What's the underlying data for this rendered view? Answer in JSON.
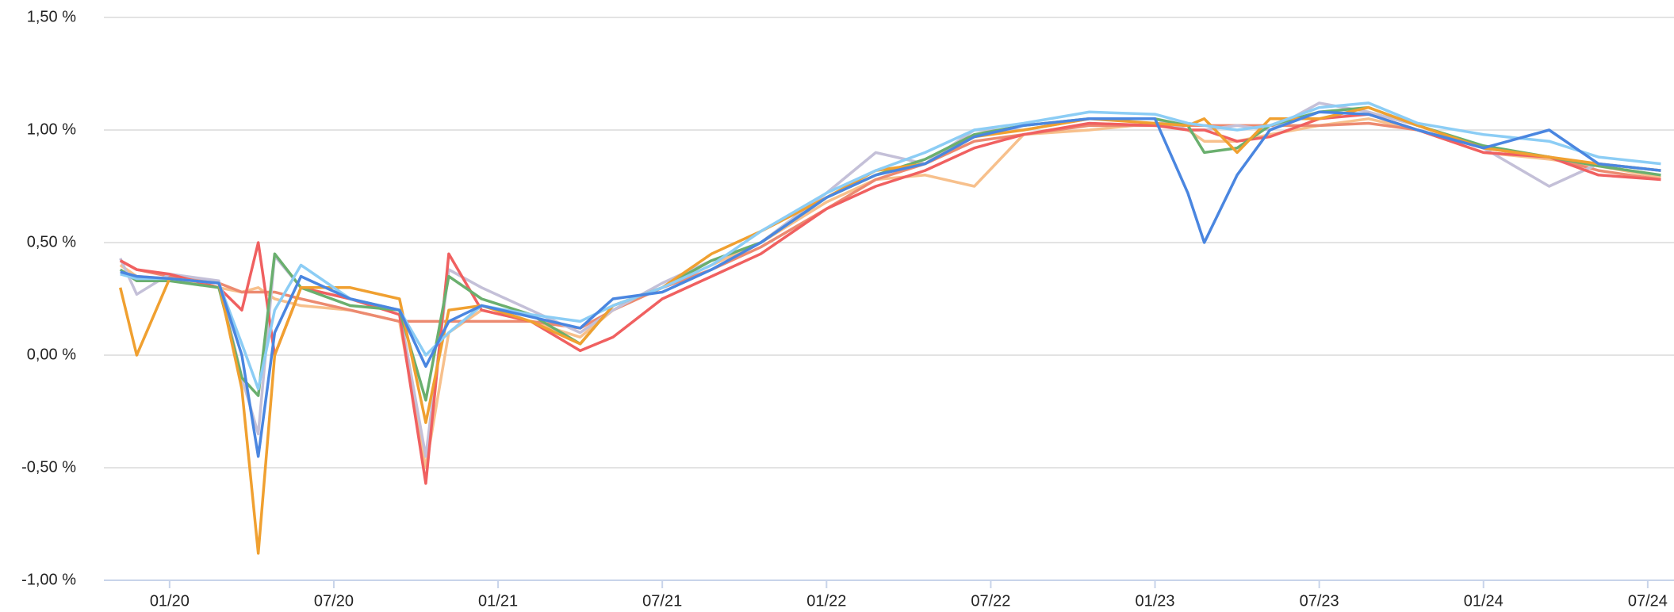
{
  "chart_data": {
    "type": "line",
    "x": [
      2019.85,
      2019.9,
      2020.0,
      2020.15,
      2020.22,
      2020.27,
      2020.32,
      2020.4,
      2020.55,
      2020.7,
      2020.78,
      2020.85,
      2020.95,
      2021.1,
      2021.25,
      2021.35,
      2021.5,
      2021.65,
      2021.8,
      2022.0,
      2022.15,
      2022.3,
      2022.45,
      2022.6,
      2022.8,
      2023.0,
      2023.1,
      2023.15,
      2023.25,
      2023.35,
      2023.5,
      2023.65,
      2023.8,
      2024.0,
      2024.2,
      2024.35,
      2024.54
    ],
    "series": [
      {
        "color": "#f7c08c",
        "values": [
          0.4,
          0.35,
          0.34,
          0.3,
          0.28,
          0.3,
          0.25,
          0.22,
          0.2,
          0.15,
          -0.5,
          0.1,
          0.2,
          0.15,
          0.08,
          0.2,
          0.3,
          0.4,
          0.5,
          0.68,
          0.78,
          0.8,
          0.75,
          0.98,
          1.0,
          1.03,
          1.0,
          0.95,
          0.95,
          0.98,
          1.02,
          1.05,
          1.0,
          0.9,
          0.87,
          0.84,
          0.79
        ]
      },
      {
        "color": "#ec8a70",
        "values": [
          0.42,
          0.38,
          0.35,
          0.32,
          0.28,
          0.28,
          0.28,
          0.25,
          0.2,
          0.15,
          0.15,
          0.15,
          0.15,
          0.15,
          0.12,
          0.2,
          0.3,
          0.38,
          0.48,
          0.65,
          0.78,
          0.85,
          0.95,
          0.98,
          1.02,
          1.02,
          1.02,
          1.02,
          1.02,
          1.02,
          1.02,
          1.03,
          1.0,
          0.92,
          0.88,
          0.82,
          0.78
        ]
      },
      {
        "color": "#c4c0d8",
        "values": [
          0.43,
          0.27,
          0.36,
          0.33,
          -0.1,
          -0.35,
          0.44,
          0.3,
          0.25,
          0.2,
          -0.45,
          0.38,
          0.3,
          0.2,
          0.1,
          0.2,
          0.32,
          0.42,
          0.5,
          0.72,
          0.9,
          0.85,
          1.0,
          1.0,
          1.05,
          1.05,
          1.0,
          1.0,
          1.02,
          1.0,
          1.12,
          1.08,
          1.02,
          0.92,
          0.75,
          0.85,
          0.82
        ]
      },
      {
        "color": "#f06060",
        "values": [
          0.42,
          0.38,
          0.36,
          0.3,
          0.2,
          0.5,
          0.0,
          0.3,
          0.25,
          0.18,
          -0.57,
          0.45,
          0.2,
          0.15,
          0.02,
          0.08,
          0.25,
          0.35,
          0.45,
          0.65,
          0.75,
          0.82,
          0.92,
          0.98,
          1.03,
          1.02,
          1.0,
          1.0,
          0.95,
          0.97,
          1.05,
          1.07,
          1.0,
          0.9,
          0.88,
          0.8,
          0.78
        ]
      },
      {
        "color": "#6aaf6e",
        "values": [
          0.38,
          0.33,
          0.33,
          0.3,
          -0.1,
          -0.18,
          0.45,
          0.3,
          0.22,
          0.2,
          -0.2,
          0.35,
          0.25,
          0.18,
          0.05,
          0.22,
          0.3,
          0.42,
          0.5,
          0.7,
          0.8,
          0.87,
          0.98,
          1.02,
          1.05,
          1.05,
          1.02,
          0.9,
          0.92,
          1.02,
          1.08,
          1.1,
          1.02,
          0.93,
          0.88,
          0.84,
          0.8
        ]
      },
      {
        "color": "#f0a030",
        "values": [
          0.3,
          0.0,
          0.34,
          0.32,
          -0.15,
          -0.88,
          0.0,
          0.3,
          0.3,
          0.25,
          -0.3,
          0.2,
          0.22,
          0.15,
          0.05,
          0.22,
          0.3,
          0.45,
          0.55,
          0.7,
          0.82,
          0.85,
          0.97,
          1.0,
          1.05,
          1.03,
          1.02,
          1.05,
          0.9,
          1.05,
          1.05,
          1.1,
          1.02,
          0.92,
          0.88,
          0.85,
          0.82
        ]
      },
      {
        "color": "#8ccdf5",
        "values": [
          0.36,
          0.34,
          0.34,
          0.32,
          0.05,
          -0.15,
          0.2,
          0.4,
          0.25,
          0.2,
          0.0,
          0.1,
          0.22,
          0.18,
          0.15,
          0.22,
          0.3,
          0.4,
          0.55,
          0.72,
          0.82,
          0.9,
          1.0,
          1.03,
          1.08,
          1.07,
          1.03,
          1.02,
          1.0,
          1.02,
          1.1,
          1.12,
          1.03,
          0.98,
          0.95,
          0.88,
          0.85
        ]
      },
      {
        "color": "#4a86e0",
        "values": [
          0.37,
          0.35,
          0.34,
          0.32,
          0.0,
          -0.45,
          0.1,
          0.35,
          0.25,
          0.2,
          -0.05,
          0.15,
          0.22,
          0.17,
          0.12,
          0.25,
          0.28,
          0.38,
          0.5,
          0.7,
          0.8,
          0.85,
          0.97,
          1.02,
          1.05,
          1.05,
          0.72,
          0.5,
          0.8,
          1.0,
          1.08,
          1.07,
          1.0,
          0.92,
          1.0,
          0.85,
          0.82
        ]
      }
    ],
    "xlim": [
      2019.8,
      2024.58
    ],
    "xticks": [
      {
        "value": 2020.0,
        "label": "01/20"
      },
      {
        "value": 2020.5,
        "label": "07/20"
      },
      {
        "value": 2021.0,
        "label": "01/21"
      },
      {
        "value": 2021.5,
        "label": "07/21"
      },
      {
        "value": 2022.0,
        "label": "01/22"
      },
      {
        "value": 2022.5,
        "label": "07/22"
      },
      {
        "value": 2023.0,
        "label": "01/23"
      },
      {
        "value": 2023.5,
        "label": "07/23"
      },
      {
        "value": 2024.0,
        "label": "01/24"
      },
      {
        "value": 2024.5,
        "label": "07/24"
      }
    ],
    "ylim": [
      -1.0,
      1.5
    ],
    "yticks": [
      {
        "value": -1.0,
        "label": "-1,00 %"
      },
      {
        "value": -0.5,
        "label": "-0,50 %"
      },
      {
        "value": 0.0,
        "label": "0,00 %"
      },
      {
        "value": 0.5,
        "label": "0,50 %"
      },
      {
        "value": 1.0,
        "label": "1,00 %"
      },
      {
        "value": 1.5,
        "label": "1,50 %"
      }
    ],
    "grid": true
  }
}
